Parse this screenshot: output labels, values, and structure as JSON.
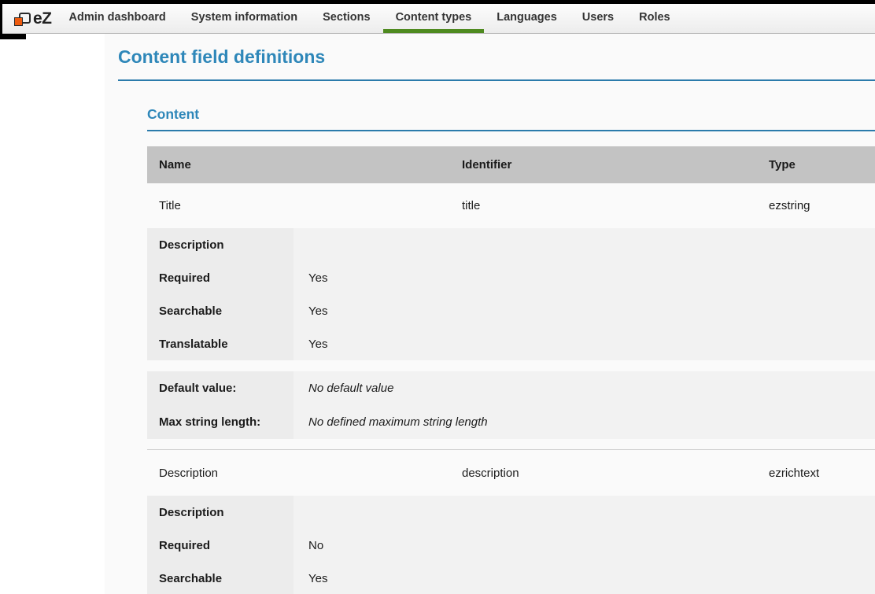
{
  "colors": {
    "accent_blue": "#2e87b9",
    "rule_blue": "#2b7bab",
    "accent_green": "#4e8a1f",
    "logo_orange": "#ee5a0d",
    "table_header_gray": "#c3c3c3",
    "subtable_label_gray": "#ececec",
    "subtable_bg_gray": "#f2f2f2"
  },
  "topnav": {
    "logo_text": "eZ",
    "items": [
      {
        "label": "Admin dashboard",
        "active": false
      },
      {
        "label": "System information",
        "active": false
      },
      {
        "label": "Sections",
        "active": false
      },
      {
        "label": "Content types",
        "active": true
      },
      {
        "label": "Languages",
        "active": false
      },
      {
        "label": "Users",
        "active": false
      },
      {
        "label": "Roles",
        "active": false
      }
    ]
  },
  "page": {
    "title": "Content field definitions",
    "section_heading": "Content"
  },
  "table": {
    "headers": [
      "Name",
      "Identifier",
      "Type"
    ],
    "fields": [
      {
        "name": "Title",
        "identifier": "title",
        "type": "ezstring",
        "properties": [
          {
            "label": "Description",
            "value": ""
          },
          {
            "label": "Required",
            "value": "Yes"
          },
          {
            "label": "Searchable",
            "value": "Yes"
          },
          {
            "label": "Translatable",
            "value": "Yes"
          }
        ],
        "settings": [
          {
            "label": "Default value:",
            "value": "No default value"
          },
          {
            "label": "Max string length:",
            "value": "No defined maximum string length"
          }
        ]
      },
      {
        "name": "Description",
        "identifier": "description",
        "type": "ezrichtext",
        "properties": [
          {
            "label": "Description",
            "value": ""
          },
          {
            "label": "Required",
            "value": "No"
          },
          {
            "label": "Searchable",
            "value": "Yes"
          }
        ]
      }
    ]
  }
}
